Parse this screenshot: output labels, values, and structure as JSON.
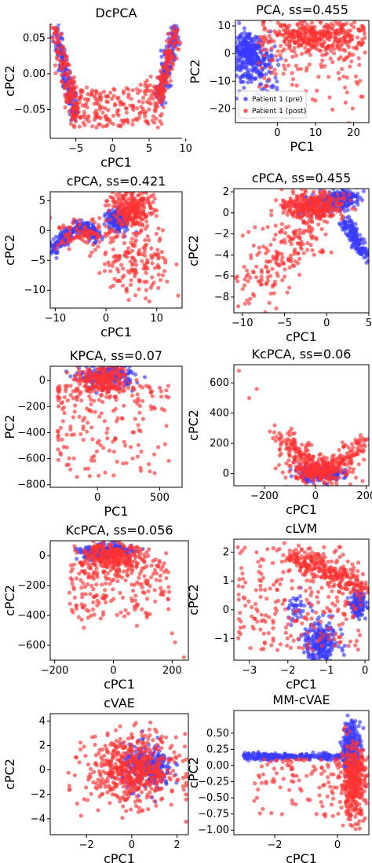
{
  "colors": {
    "pre": "#3a3aff",
    "post": "#ff3333"
  },
  "legend": {
    "pre": "Patient 1 (pre)",
    "post": "Patient 1 (post)"
  },
  "chart_data": [
    {
      "type": "scatter",
      "title": "DcPCA",
      "xlabel": "cPC1",
      "ylabel": "cPC2",
      "xlim": [
        -8.5,
        9.5
      ],
      "ylim": [
        -0.09,
        0.07
      ],
      "xticks": [
        -5,
        0,
        5,
        10
      ],
      "yticks": [
        0.05,
        0.0,
        -0.05
      ],
      "ytick_labels": [
        "0.05",
        "0.00",
        "−0.05"
      ],
      "spines": "left-bottom-only",
      "shape": "u-arms",
      "arms": {
        "left": {
          "x": [
            -8,
            -5
          ],
          "y": [
            0.06,
            -0.06
          ]
        },
        "right": {
          "x": [
            6.5,
            8.5
          ],
          "y": [
            -0.03,
            0.06
          ]
        }
      },
      "series": [
        {
          "name": "Patient 1 (pre)",
          "concentration": "arms"
        },
        {
          "name": "Patient 1 (post)",
          "concentration": "arms and valley"
        }
      ]
    },
    {
      "type": "scatter",
      "title": "PCA, ss=0.455",
      "xlabel": "PC1",
      "ylabel": "PC2",
      "xlim": [
        -11,
        24
      ],
      "ylim": [
        -25,
        12
      ],
      "xticks": [
        0,
        10,
        20
      ],
      "yticks": [
        10,
        0,
        -10,
        -20
      ],
      "legend": "lower-left",
      "series": [
        {
          "name": "Patient 1 (pre)",
          "clusters": [
            {
              "x": [
                -11,
                -2
              ],
              "y": [
                -10,
                6
              ]
            }
          ]
        },
        {
          "name": "Patient 1 (post)",
          "clusters": [
            {
              "x": [
                -5,
                24
              ],
              "y": [
                -25,
                12
              ]
            }
          ]
        }
      ]
    },
    {
      "type": "scatter",
      "title": "cPCA, ss=0.421",
      "xlabel": "cPC1",
      "ylabel": "cPC2",
      "xlim": [
        -11,
        15
      ],
      "ylim": [
        -13,
        6.5
      ],
      "xticks": [
        -10,
        0,
        10
      ],
      "yticks": [
        5,
        0,
        -5,
        -10
      ],
      "series": [
        {
          "name": "Patient 1 (pre)",
          "clusters": [
            {
              "x": [
                -11,
                0
              ],
              "y": [
                -4,
                0
              ]
            },
            {
              "x": [
                1,
                5
              ],
              "y": [
                0,
                3
              ]
            }
          ]
        },
        {
          "name": "Patient 1 (post)",
          "clusters": [
            {
              "x": [
                -9,
                15
              ],
              "y": [
                -13,
                6
              ]
            }
          ]
        }
      ]
    },
    {
      "type": "scatter",
      "title": "cPCA, ss=0.455",
      "xlabel": "cPC1",
      "ylabel": "cPC2",
      "xlim": [
        -11,
        5
      ],
      "ylim": [
        -9.5,
        2.3
      ],
      "xticks": [
        -10,
        -5,
        0,
        5
      ],
      "yticks": [
        2,
        0,
        -2,
        -4,
        -6,
        -8
      ],
      "series": [
        {
          "name": "Patient 1 (pre)",
          "clusters": [
            {
              "x": [
                -3,
                2.5
              ],
              "y": [
                0,
                2
              ]
            },
            {
              "x": [
                2,
                5
              ],
              "y": [
                -4.5,
                -1
              ]
            }
          ]
        },
        {
          "name": "Patient 1 (post)",
          "clusters": [
            {
              "x": [
                -10,
                4
              ],
              "y": [
                -9,
                2
              ]
            }
          ]
        }
      ]
    },
    {
      "type": "scatter",
      "title": "KPCA, ss=0.07",
      "xlabel": "PC1",
      "ylabel": "PC2",
      "xlim": [
        -380,
        680
      ],
      "ylim": [
        -820,
        110
      ],
      "xticks": [
        0,
        500
      ],
      "yticks": [
        0,
        -200,
        -400,
        -600,
        -800
      ],
      "ytick_labels": [
        "0",
        "−200",
        "−400",
        "−600",
        "−800"
      ],
      "series": [
        {
          "name": "Patient 1 (pre)",
          "clusters": [
            {
              "x": [
                -150,
                300
              ],
              "y": [
                -100,
                100
              ]
            }
          ]
        },
        {
          "name": "Patient 1 (post)",
          "clusters": [
            {
              "x": [
                -350,
                650
              ],
              "y": [
                -780,
                100
              ]
            }
          ]
        }
      ]
    },
    {
      "type": "scatter",
      "title": "KcPCA, ss=0.06",
      "xlabel": "cPC1",
      "ylabel": "cPC2",
      "xlim": [
        -320,
        210
      ],
      "ylim": [
        -80,
        720
      ],
      "xticks": [
        -200,
        0,
        200
      ],
      "yticks": [
        600,
        400,
        200,
        0
      ],
      "series": [
        {
          "name": "Patient 1 (pre)",
          "clusters": [
            {
              "x": [
                -80,
                120
              ],
              "y": [
                -60,
                60
              ]
            }
          ]
        },
        {
          "name": "Patient 1 (post)",
          "clusters": [
            {
              "x": [
                -300,
                210
              ],
              "y": [
                -60,
                700
              ]
            }
          ]
        }
      ]
    },
    {
      "type": "scatter",
      "title": "KcPCA, ss=0.056",
      "xlabel": "cPC1",
      "ylabel": "cPC2",
      "xlim": [
        -215,
        255
      ],
      "ylim": [
        -700,
        100
      ],
      "xticks": [
        -200,
        0,
        200
      ],
      "yticks": [
        0,
        -200,
        -400,
        -600
      ],
      "series": [
        {
          "name": "Patient 1 (pre)",
          "clusters": [
            {
              "x": [
                -100,
                60
              ],
              "y": [
                -20,
                80
              ]
            }
          ]
        },
        {
          "name": "Patient 1 (post)",
          "clusters": [
            {
              "x": [
                -200,
                245
              ],
              "y": [
                -680,
                80
              ]
            }
          ]
        }
      ]
    },
    {
      "type": "scatter",
      "title": "cLVM",
      "xlabel": "cPC1",
      "ylabel": "cPC2",
      "xlim": [
        -3.4,
        0.1
      ],
      "ylim": [
        -1.75,
        2.45
      ],
      "xticks": [
        -3,
        -2,
        -1,
        0
      ],
      "yticks": [
        2,
        1,
        0,
        -1
      ],
      "series": [
        {
          "name": "Patient 1 (pre)",
          "clusters": [
            {
              "x": [
                -1.6,
                -0.8
              ],
              "y": [
                -1.6,
                -0.4
              ]
            },
            {
              "x": [
                -0.5,
                0
              ],
              "y": [
                0,
                0.6
              ]
            }
          ]
        },
        {
          "name": "Patient 1 (post)",
          "clusters": [
            {
              "x": [
                -3.3,
                0
              ],
              "y": [
                -1.5,
                2.4
              ]
            }
          ]
        }
      ]
    },
    {
      "type": "scatter",
      "title": "cVAE",
      "xlabel": "cPC1",
      "ylabel": "cPC2",
      "xlim": [
        -3.6,
        2.5
      ],
      "ylim": [
        -5.3,
        4.6
      ],
      "xticks": [
        -2,
        0,
        2
      ],
      "yticks": [
        4,
        2,
        0,
        -2,
        -4
      ],
      "series": [
        {
          "name": "Patient 1 (pre)",
          "clusters": [
            {
              "x": [
                -0.5,
                2
              ],
              "y": [
                -2,
                2
              ]
            }
          ]
        },
        {
          "name": "Patient 1 (post)",
          "clusters": [
            {
              "x": [
                -3.5,
                2.4
              ],
              "y": [
                -5,
                4.4
              ]
            }
          ]
        }
      ]
    },
    {
      "type": "scatter",
      "title": "MM-cVAE",
      "xlabel": "cPC1",
      "ylabel": "cPC2",
      "xlim": [
        -3.3,
        1.0
      ],
      "ylim": [
        -1.07,
        0.85
      ],
      "xticks": [
        -2,
        0
      ],
      "yticks": [
        0.5,
        0.25,
        0.0,
        -0.25,
        -0.5,
        -0.75,
        -1.0
      ],
      "ytick_labels": [
        "0.50",
        "0.25",
        "0.00",
        "−0.25",
        "−0.50",
        "−0.75",
        "−1.00"
      ],
      "series": [
        {
          "name": "Patient 1 (pre)",
          "clusters": [
            {
              "x": [
                -3,
                0.2
              ],
              "y": [
                0.1,
                0.18
              ]
            },
            {
              "x": [
                0.2,
                0.7
              ],
              "y": [
                0,
                0.8
              ]
            }
          ]
        },
        {
          "name": "Patient 1 (post)",
          "clusters": [
            {
              "x": [
                -2.8,
                0.9
              ],
              "y": [
                -1.0,
                0.5
              ]
            }
          ]
        }
      ]
    }
  ]
}
